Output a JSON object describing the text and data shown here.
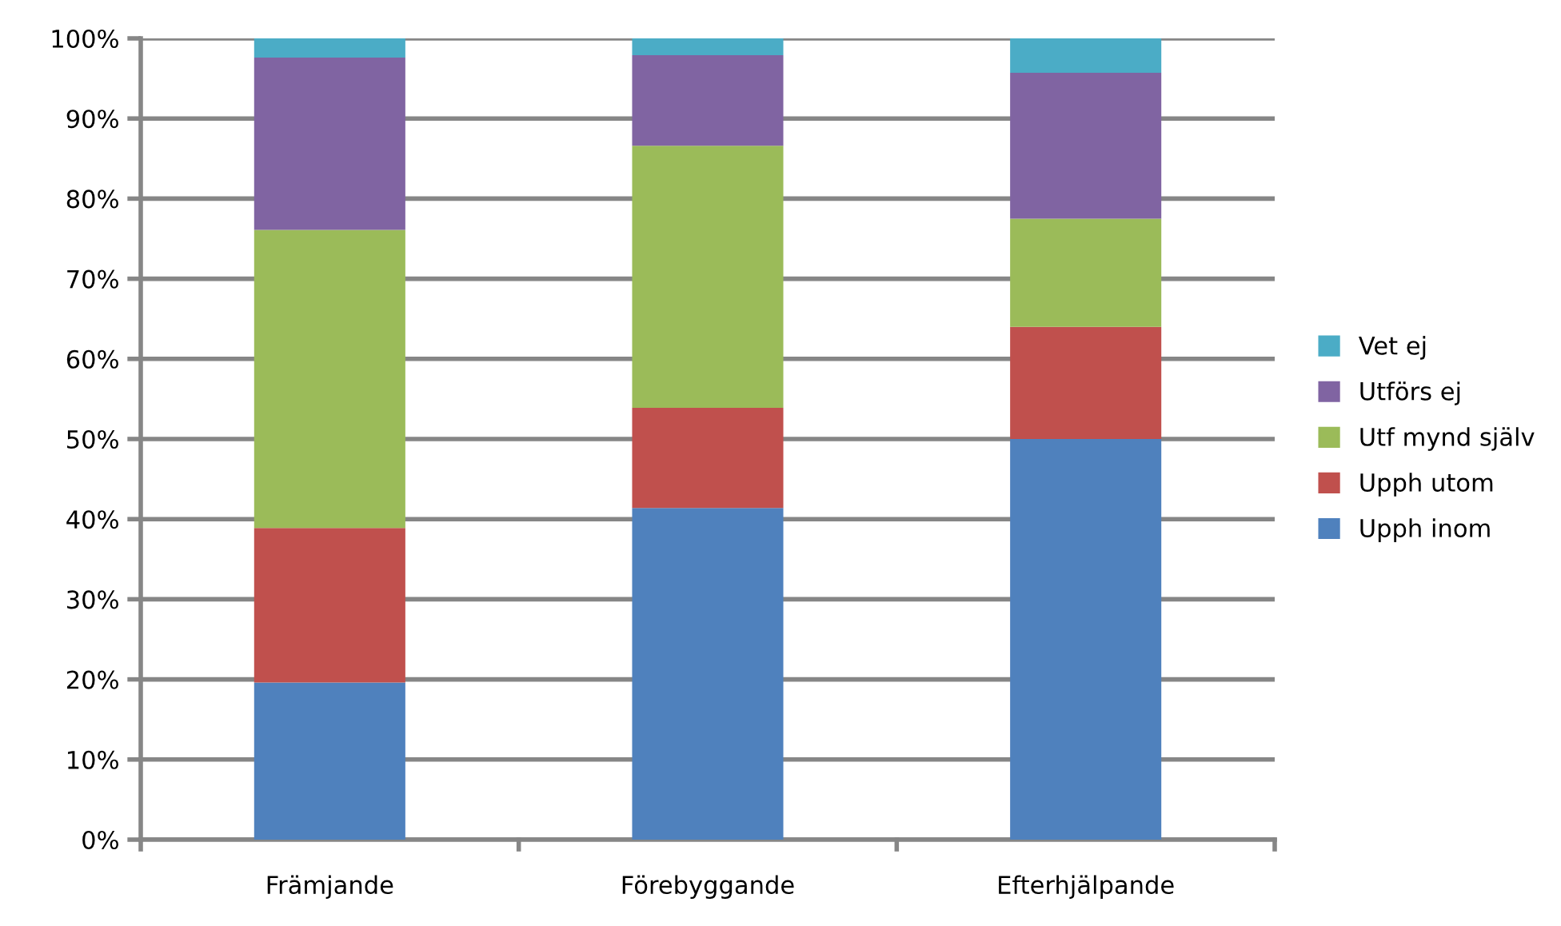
{
  "chart_data": {
    "type": "bar",
    "stacked": true,
    "categories": [
      "Främjande",
      "Förebyggande",
      "Efterhjälpande"
    ],
    "series": [
      {
        "name": "Upph inom",
        "color": "#4f81bd",
        "values": [
          19.6,
          41.4,
          50.0
        ]
      },
      {
        "name": "Upph utom",
        "color": "#c0504d",
        "values": [
          19.3,
          12.5,
          14.0
        ]
      },
      {
        "name": "Utf mynd själv",
        "color": "#9bbb59",
        "values": [
          37.2,
          32.7,
          13.5
        ]
      },
      {
        "name": "Utförs ej",
        "color": "#8064a2",
        "values": [
          21.5,
          11.3,
          18.2
        ]
      },
      {
        "name": "Vet ej",
        "color": "#4bacc6",
        "values": [
          2.4,
          2.1,
          4.3
        ]
      }
    ],
    "ylim": [
      0,
      100
    ],
    "yticks": [
      {
        "value": 0,
        "label": "0%"
      },
      {
        "value": 10,
        "label": "10%"
      },
      {
        "value": 20,
        "label": "20%"
      },
      {
        "value": 30,
        "label": "30%"
      },
      {
        "value": 40,
        "label": "40%"
      },
      {
        "value": 50,
        "label": "50%"
      },
      {
        "value": 60,
        "label": "60%"
      },
      {
        "value": 70,
        "label": "70%"
      },
      {
        "value": 80,
        "label": "80%"
      },
      {
        "value": 90,
        "label": "90%"
      },
      {
        "value": 100,
        "label": "100%"
      }
    ],
    "grid": "y",
    "legend": "right"
  }
}
